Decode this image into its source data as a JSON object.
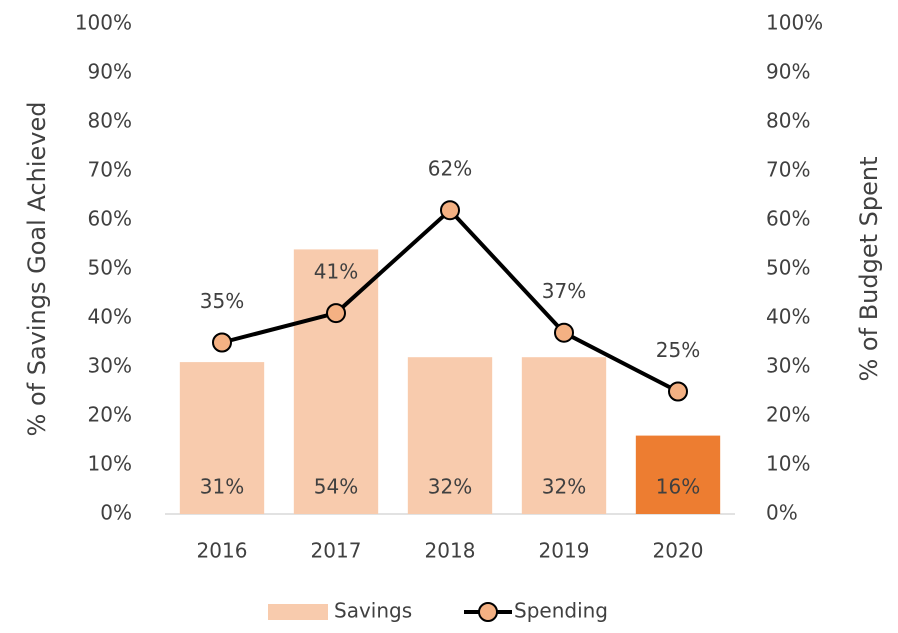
{
  "chart_data": {
    "type": "combo",
    "categories": [
      "2016",
      "2017",
      "2018",
      "2019",
      "2020"
    ],
    "y_label": "% of Savings Goal Achieved",
    "y2_label": "% of Budget Spent",
    "ylim": [
      0,
      100
    ],
    "yticks": [
      {
        "value": 0,
        "label": "0%"
      },
      {
        "value": 10,
        "label": "10%"
      },
      {
        "value": 20,
        "label": "20%"
      },
      {
        "value": 30,
        "label": "30%"
      },
      {
        "value": 40,
        "label": "40%"
      },
      {
        "value": 50,
        "label": "50%"
      },
      {
        "value": 60,
        "label": "60%"
      },
      {
        "value": 70,
        "label": "70%"
      },
      {
        "value": 80,
        "label": "80%"
      },
      {
        "value": 90,
        "label": "90%"
      },
      {
        "value": 100,
        "label": "100%"
      }
    ],
    "y2lim": [
      0,
      100
    ],
    "y2ticks": [
      {
        "value": 0,
        "label": "0%"
      },
      {
        "value": 10,
        "label": "10%"
      },
      {
        "value": 20,
        "label": "20%"
      },
      {
        "value": 30,
        "label": "30%"
      },
      {
        "value": 40,
        "label": "40%"
      },
      {
        "value": 50,
        "label": "50%"
      },
      {
        "value": 60,
        "label": "60%"
      },
      {
        "value": 70,
        "label": "70%"
      },
      {
        "value": 80,
        "label": "80%"
      },
      {
        "value": 90,
        "label": "90%"
      },
      {
        "value": 100,
        "label": "100%"
      }
    ],
    "legend": "bottom",
    "series": [
      {
        "name": "Savings",
        "type": "bar",
        "color": "#f8cbad",
        "colors": [
          "#f8cbad",
          "#f8cbad",
          "#f8cbad",
          "#f8cbad",
          "#ed7d31"
        ],
        "values": [
          31,
          54,
          32,
          32,
          16
        ],
        "value_labels": [
          "31%",
          "54%",
          "32%",
          "32%",
          "16%"
        ]
      },
      {
        "name": "Spending",
        "type": "line",
        "axis": "y2",
        "color": "#000000",
        "marker_color": "#f4b183",
        "values": [
          35,
          41,
          62,
          37,
          25
        ],
        "value_labels": [
          "35%",
          "41%",
          "62%",
          "37%",
          "25%"
        ]
      }
    ]
  }
}
